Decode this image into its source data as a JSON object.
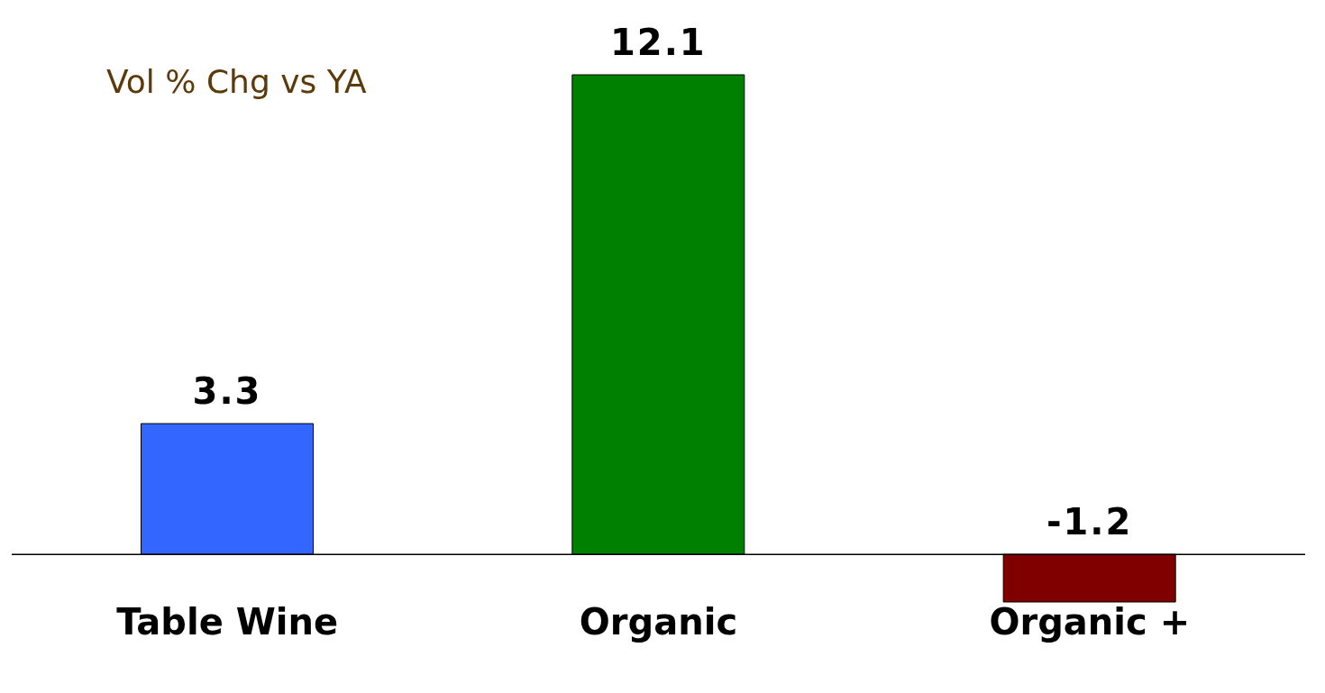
{
  "chart_data": {
    "type": "bar",
    "title": "Vol % Chg vs YA",
    "categories": [
      "Table Wine",
      "Organic",
      "Organic +"
    ],
    "values": [
      3.3,
      12.1,
      -1.2
    ],
    "colors": [
      "#3366ff",
      "#008000",
      "#800000"
    ],
    "data_labels": true
  }
}
